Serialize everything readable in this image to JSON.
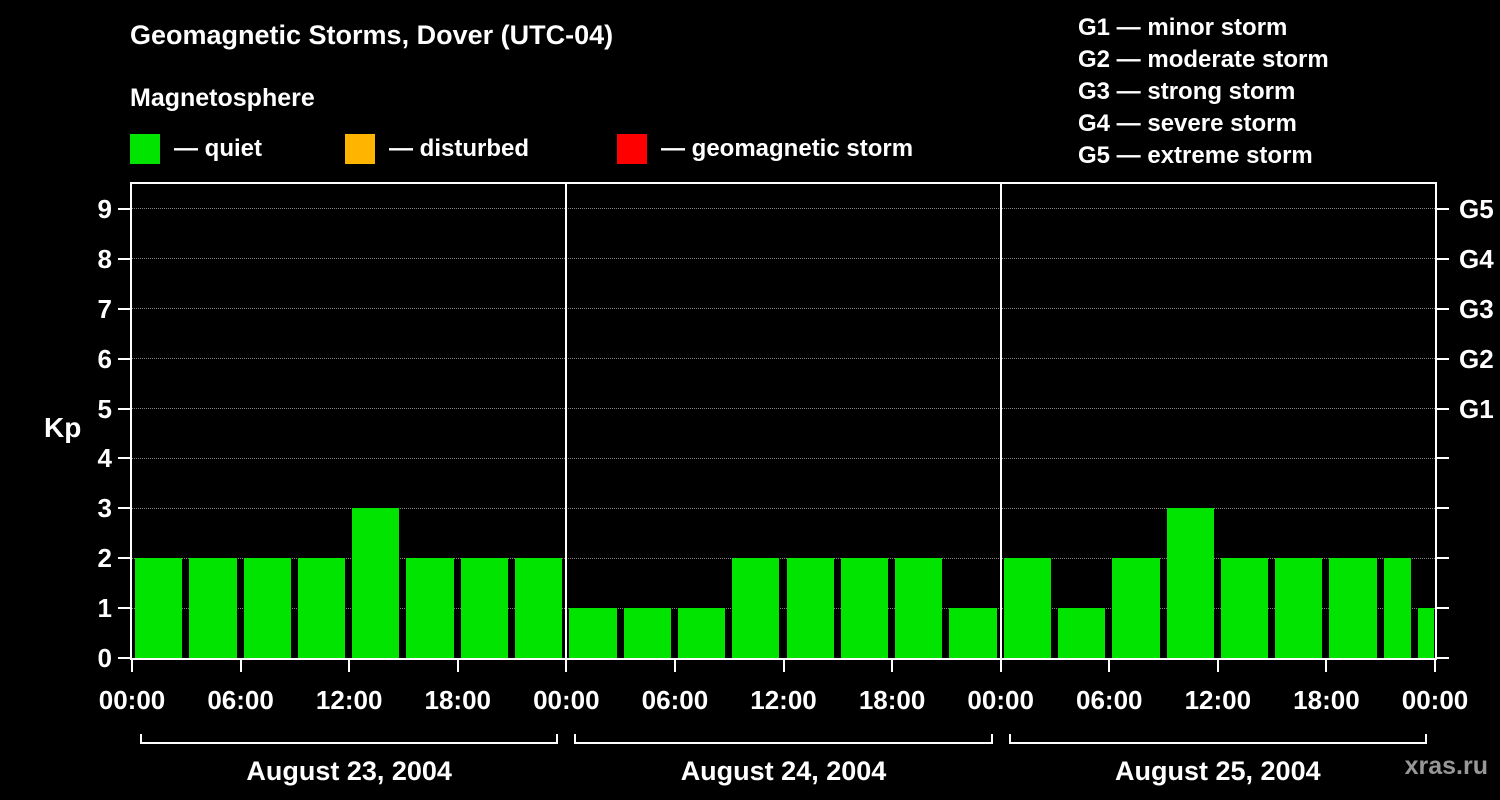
{
  "header": {
    "title": "Geomagnetic Storms, Dover (UTC-04)",
    "subtitle": "Magnetosphere",
    "legend": [
      {
        "label": "— quiet",
        "color": "#00e400"
      },
      {
        "label": "— disturbed",
        "color": "#ffb400"
      },
      {
        "label": "— geomagnetic storm",
        "color": "#fe0000"
      }
    ],
    "storm_scale": [
      "G1 — minor storm",
      "G2 — moderate storm",
      "G3 — strong storm",
      "G4 — severe storm",
      "G5 — extreme storm"
    ]
  },
  "watermark": "xras.ru",
  "chart_data": {
    "type": "bar",
    "title": "Geomagnetic Storms, Dover (UTC-04)",
    "ylabel": "Kp",
    "ylim": [
      0,
      9.5
    ],
    "yticks": [
      0,
      1,
      2,
      3,
      4,
      5,
      6,
      7,
      8,
      9
    ],
    "grid": "dotted horizontal",
    "bar_color": "#00e400",
    "right_scale": [
      {
        "kp": 5,
        "label": "G1"
      },
      {
        "kp": 6,
        "label": "G2"
      },
      {
        "kp": 7,
        "label": "G3"
      },
      {
        "kp": 8,
        "label": "G4"
      },
      {
        "kp": 9,
        "label": "G5"
      }
    ],
    "x_tick_labels": [
      "00:00",
      "06:00",
      "12:00",
      "18:00"
    ],
    "x_end_label": "00:00",
    "days": [
      {
        "date": "August 23, 2004",
        "values": [
          2,
          2,
          2,
          2,
          3,
          2,
          2,
          2
        ]
      },
      {
        "date": "August 24, 2004",
        "values": [
          1,
          1,
          1,
          2,
          2,
          2,
          2,
          1
        ]
      },
      {
        "date": "August 25, 2004",
        "values": [
          2,
          1,
          2,
          3,
          2,
          2,
          2,
          2
        ]
      }
    ],
    "partial_next_value": 1
  }
}
